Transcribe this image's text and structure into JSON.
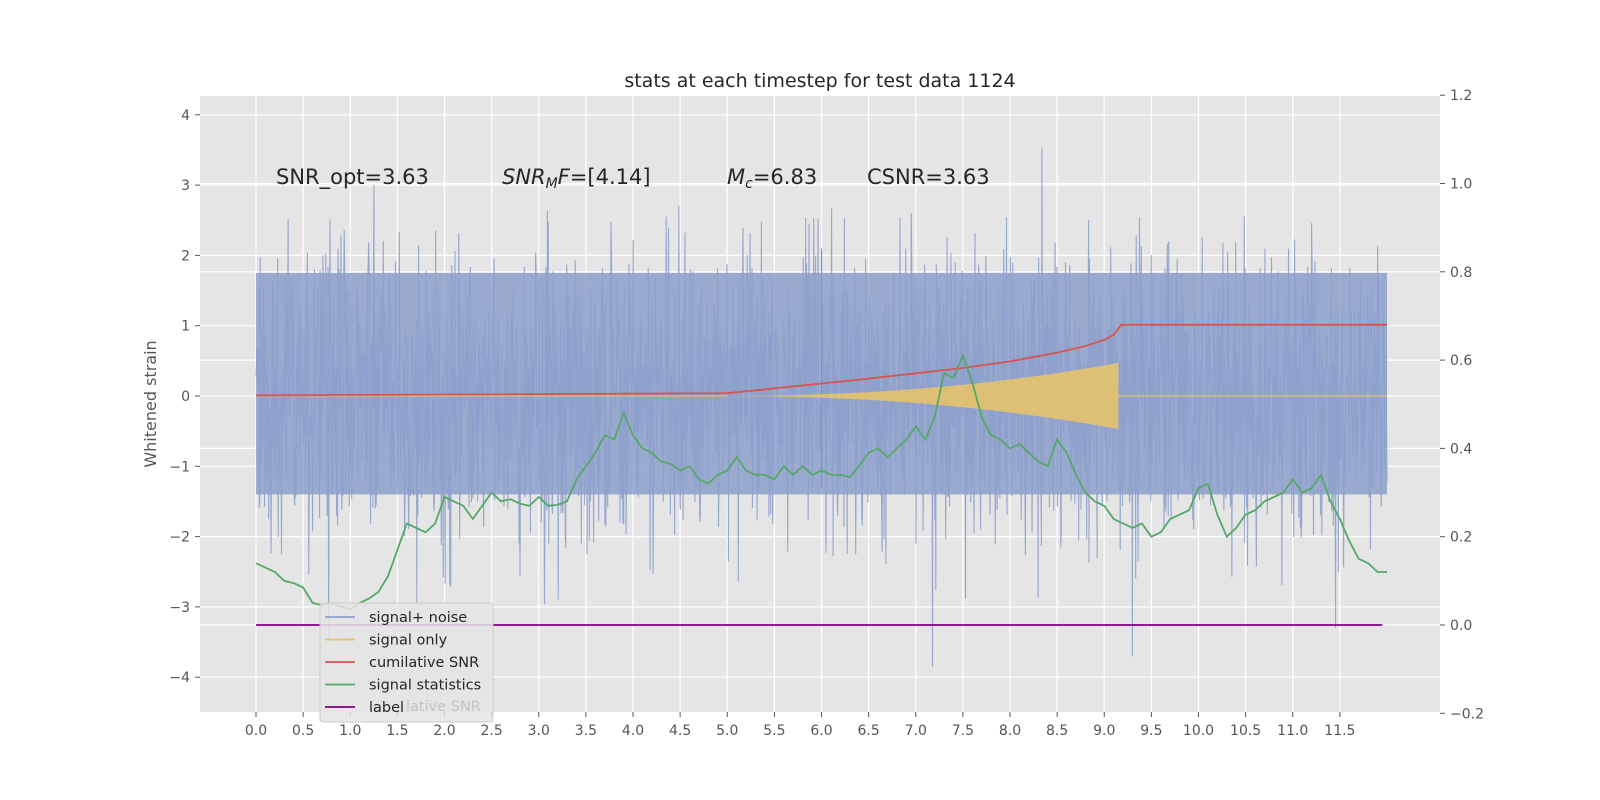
{
  "chart_data": {
    "type": "line",
    "title": "stats at each timestep for test data 1124",
    "xlabel": "",
    "ylabel": "Whitened strain",
    "xlim": [
      -0.6,
      12.6
    ],
    "ylim": [
      -4.5,
      4.25
    ],
    "y2lim": [
      -0.2,
      1.2
    ],
    "x_ticks": [
      "0.0",
      "0.5",
      "1.0",
      "1.5",
      "2.0",
      "2.5",
      "3.0",
      "3.5",
      "4.0",
      "4.5",
      "5.0",
      "5.5",
      "6.0",
      "6.5",
      "7.0",
      "7.5",
      "8.0",
      "8.5",
      "9.0",
      "9.5",
      "10.0",
      "10.5",
      "11.0",
      "11.5"
    ],
    "y_ticks": [
      "4",
      "3",
      "2",
      "1",
      "0",
      "−1",
      "−2",
      "−3",
      "−4"
    ],
    "y2_ticks": [
      "1.2",
      "1.0",
      "0.8",
      "0.6",
      "0.4",
      "0.2",
      "0.0",
      "−0.2"
    ],
    "grid": true,
    "legend_position": "lower-left",
    "annotations": {
      "snr_opt": "SNR_opt=3.63",
      "snr_mf": "SNR_MF=[4.14]",
      "snr_mf_prefix": "SNR",
      "snr_mf_sub": "M",
      "snr_mf_suffix": "F=[4.14]",
      "mc": "M_c=6.83",
      "mc_prefix": "M",
      "mc_sub": "c",
      "mc_suffix": "=6.83",
      "csnr": "CSNR=3.63"
    },
    "series": [
      {
        "name": "signal+ noise",
        "axis": "left",
        "color": "#8da0cb",
        "description_range": [
          0.0,
          12.0
        ],
        "style": "dense noise, |y| up to ~4",
        "noise_band": {
          "typical_low": -2.0,
          "typical_high": 2.0,
          "max": 3.9,
          "min": -4.1
        }
      },
      {
        "name": "signal only",
        "axis": "left",
        "color": "#e5c36b",
        "chirp_start": 5.0,
        "chirp_end": 9.15,
        "peak_amplitude": 0.45
      },
      {
        "name": "cumilative SNR",
        "axis": "right",
        "color": "#d9534f",
        "x": [
          0,
          1,
          2,
          3,
          4,
          5,
          5.5,
          6,
          6.5,
          7,
          7.5,
          8,
          8.5,
          8.8,
          9.0,
          9.1,
          9.18,
          12.0
        ],
        "y": [
          0.52,
          0.521,
          0.522,
          0.523,
          0.524,
          0.525,
          0.536,
          0.547,
          0.558,
          0.57,
          0.582,
          0.597,
          0.617,
          0.632,
          0.646,
          0.657,
          0.68,
          0.68
        ]
      },
      {
        "name": "signal statistics",
        "axis": "right",
        "color": "#55a868",
        "x": [
          0,
          0.1,
          0.2,
          0.3,
          0.4,
          0.5,
          0.6,
          0.7,
          0.8,
          0.9,
          1.0,
          1.1,
          1.2,
          1.3,
          1.4,
          1.5,
          1.6,
          1.7,
          1.8,
          1.9,
          2.0,
          2.1,
          2.2,
          2.3,
          2.4,
          2.5,
          2.6,
          2.7,
          2.8,
          2.9,
          3.0,
          3.1,
          3.2,
          3.3,
          3.4,
          3.5,
          3.6,
          3.7,
          3.8,
          3.9,
          4.0,
          4.1,
          4.2,
          4.3,
          4.4,
          4.5,
          4.6,
          4.7,
          4.8,
          4.9,
          5.0,
          5.1,
          5.2,
          5.3,
          5.4,
          5.5,
          5.6,
          5.7,
          5.8,
          5.9,
          6.0,
          6.1,
          6.2,
          6.3,
          6.4,
          6.5,
          6.6,
          6.7,
          6.8,
          6.9,
          7.0,
          7.1,
          7.2,
          7.3,
          7.4,
          7.5,
          7.6,
          7.7,
          7.8,
          7.9,
          8.0,
          8.1,
          8.2,
          8.3,
          8.4,
          8.5,
          8.6,
          8.7,
          8.8,
          8.9,
          9.0,
          9.1,
          9.2,
          9.3,
          9.4,
          9.5,
          9.6,
          9.7,
          9.8,
          9.9,
          10.0,
          10.1,
          10.2,
          10.3,
          10.4,
          10.5,
          10.6,
          10.7,
          10.8,
          10.9,
          11.0,
          11.1,
          11.2,
          11.3,
          11.4,
          11.5,
          11.6,
          11.7,
          11.8,
          11.9,
          12.0
        ],
        "y": [
          0.14,
          0.13,
          0.12,
          0.1,
          0.095,
          0.085,
          0.05,
          0.045,
          0.048,
          0.042,
          0.035,
          0.05,
          0.06,
          0.075,
          0.11,
          0.17,
          0.23,
          0.22,
          0.21,
          0.23,
          0.29,
          0.28,
          0.27,
          0.24,
          0.27,
          0.3,
          0.28,
          0.285,
          0.275,
          0.27,
          0.29,
          0.27,
          0.272,
          0.28,
          0.33,
          0.36,
          0.39,
          0.43,
          0.42,
          0.48,
          0.43,
          0.4,
          0.39,
          0.37,
          0.365,
          0.35,
          0.36,
          0.33,
          0.32,
          0.34,
          0.35,
          0.38,
          0.35,
          0.34,
          0.34,
          0.33,
          0.36,
          0.34,
          0.36,
          0.34,
          0.35,
          0.34,
          0.34,
          0.335,
          0.36,
          0.39,
          0.4,
          0.38,
          0.4,
          0.42,
          0.45,
          0.42,
          0.47,
          0.57,
          0.56,
          0.61,
          0.55,
          0.47,
          0.43,
          0.42,
          0.4,
          0.41,
          0.39,
          0.37,
          0.36,
          0.42,
          0.39,
          0.34,
          0.3,
          0.28,
          0.27,
          0.24,
          0.23,
          0.22,
          0.23,
          0.2,
          0.21,
          0.24,
          0.25,
          0.26,
          0.31,
          0.32,
          0.25,
          0.2,
          0.22,
          0.25,
          0.26,
          0.28,
          0.29,
          0.3,
          0.33,
          0.3,
          0.31,
          0.34,
          0.28,
          0.24,
          0.19,
          0.15,
          0.14,
          0.12,
          0.12
        ]
      },
      {
        "name": "label",
        "axis": "right",
        "color": "#800080",
        "x": [
          0,
          11.95
        ],
        "y": [
          0.0,
          0.0
        ]
      }
    ],
    "legend_partial_text": "lative SNR"
  }
}
